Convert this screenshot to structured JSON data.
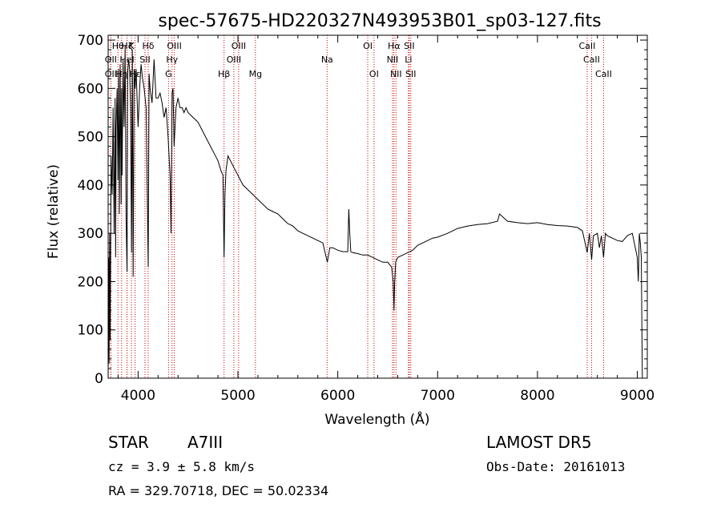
{
  "chart_data": {
    "type": "line",
    "title": "spec-57675-HD220327N493953B01_sp03-127.fits",
    "xlabel": "Wavelength (Å)",
    "ylabel": "Flux (relative)",
    "xlim": [
      3700,
      9100
    ],
    "ylim": [
      0,
      710
    ],
    "x_ticks": [
      4000,
      5000,
      6000,
      7000,
      8000,
      9000
    ],
    "y_ticks": [
      0,
      100,
      200,
      300,
      400,
      500,
      600,
      700
    ],
    "grid": false,
    "line_color": "#000000",
    "marker_line_color": "#cc0000",
    "series": [
      {
        "x": [
          3700,
          3705,
          3710,
          3715,
          3720,
          3730,
          3740,
          3750,
          3760,
          3770,
          3775,
          3780,
          3790,
          3798,
          3805,
          3812,
          3820,
          3830,
          3835,
          3840,
          3850,
          3860,
          3870,
          3880,
          3889,
          3895,
          3905,
          3915,
          3925,
          3934,
          3942,
          3950,
          3960,
          3970,
          3980,
          3990,
          4000,
          4015,
          4030,
          4045,
          4060,
          4080,
          4101,
          4110,
          4120,
          4140,
          4160,
          4180,
          4200,
          4220,
          4240,
          4260,
          4280,
          4300,
          4320,
          4330,
          4340,
          4350,
          4360,
          4380,
          4400,
          4420,
          4440,
          4460,
          4480,
          4500,
          4550,
          4600,
          4650,
          4700,
          4750,
          4800,
          4830,
          4850,
          4861,
          4870,
          4880,
          4900,
          4950,
          5000,
          5050,
          5100,
          5150,
          5200,
          5250,
          5300,
          5350,
          5400,
          5450,
          5500,
          5550,
          5600,
          5650,
          5700,
          5750,
          5800,
          5850,
          5895,
          5920,
          5950,
          6000,
          6050,
          6100,
          6110,
          6120,
          6130,
          6150,
          6200,
          6250,
          6300,
          6350,
          6400,
          6450,
          6500,
          6540,
          6555,
          6563,
          6570,
          6580,
          6600,
          6650,
          6700,
          6750,
          6800,
          6850,
          6900,
          6950,
          7000,
          7100,
          7200,
          7300,
          7400,
          7500,
          7600,
          7620,
          7700,
          7800,
          7900,
          8000,
          8100,
          8200,
          8300,
          8400,
          8450,
          8498,
          8520,
          8542,
          8560,
          8600,
          8620,
          8640,
          8662,
          8680,
          8700,
          8750,
          8800,
          8850,
          8900,
          8950,
          9000,
          9010,
          9020,
          9030,
          9040,
          9050
        ],
        "y": [
          0,
          250,
          30,
          300,
          80,
          460,
          380,
          560,
          300,
          580,
          250,
          520,
          600,
          410,
          640,
          340,
          650,
          360,
          600,
          420,
          660,
          520,
          690,
          330,
          220,
          630,
          660,
          640,
          560,
          260,
          680,
          210,
          640,
          600,
          640,
          580,
          520,
          600,
          650,
          620,
          600,
          560,
          230,
          630,
          600,
          570,
          660,
          580,
          580,
          590,
          570,
          540,
          560,
          500,
          420,
          300,
          590,
          600,
          480,
          560,
          580,
          560,
          560,
          550,
          560,
          550,
          540,
          530,
          510,
          490,
          470,
          450,
          430,
          420,
          250,
          380,
          430,
          460,
          440,
          420,
          400,
          390,
          380,
          370,
          360,
          350,
          345,
          340,
          330,
          320,
          315,
          305,
          300,
          295,
          290,
          285,
          280,
          240,
          270,
          270,
          265,
          262,
          262,
          350,
          300,
          262,
          260,
          258,
          255,
          255,
          250,
          245,
          240,
          240,
          230,
          200,
          140,
          200,
          240,
          250,
          255,
          260,
          265,
          275,
          280,
          285,
          290,
          292,
          300,
          310,
          315,
          318,
          320,
          325,
          340,
          325,
          322,
          320,
          322,
          318,
          316,
          315,
          312,
          305,
          260,
          300,
          245,
          295,
          300,
          270,
          295,
          250,
          300,
          295,
          290,
          285,
          283,
          295,
          300,
          250,
          200,
          300,
          280,
          250,
          0
        ]
      }
    ],
    "line_markers": [
      {
        "name": "OII",
        "wavelength": 3727,
        "row": 2
      },
      {
        "name": "OII",
        "wavelength": 3727,
        "row": 3
      },
      {
        "name": "Hθ",
        "wavelength": 3798,
        "row": 1
      },
      {
        "name": "Hη",
        "wavelength": 3835,
        "row": 3
      },
      {
        "name": "HeI",
        "wavelength": 3889,
        "row": 2
      },
      {
        "name": "Hζ",
        "wavelength": 3889,
        "row": 1
      },
      {
        "name": "K",
        "wavelength": 3934,
        "row": 1
      },
      {
        "name": "Hε",
        "wavelength": 3970,
        "row": 3
      },
      {
        "name": "SII",
        "wavelength": 4069,
        "row": 2
      },
      {
        "name": "Hδ",
        "wavelength": 4101,
        "row": 1
      },
      {
        "name": "OIII",
        "wavelength": 4363,
        "row": 1
      },
      {
        "name": "Hγ",
        "wavelength": 4340,
        "row": 2
      },
      {
        "name": "G",
        "wavelength": 4305,
        "row": 3
      },
      {
        "name": "Hβ",
        "wavelength": 4861,
        "row": 3
      },
      {
        "name": "OIII",
        "wavelength": 4959,
        "row": 2
      },
      {
        "name": "OIII",
        "wavelength": 5007,
        "row": 1
      },
      {
        "name": "Mg",
        "wavelength": 5175,
        "row": 3
      },
      {
        "name": "Na",
        "wavelength": 5893,
        "row": 2
      },
      {
        "name": "OI",
        "wavelength": 6300,
        "row": 1
      },
      {
        "name": "OI",
        "wavelength": 6363,
        "row": 3
      },
      {
        "name": "Hα",
        "wavelength": 6563,
        "row": 1
      },
      {
        "name": "NII",
        "wavelength": 6548,
        "row": 2
      },
      {
        "name": "NII",
        "wavelength": 6583,
        "row": 3
      },
      {
        "name": "SII",
        "wavelength": 6716,
        "row": 1
      },
      {
        "name": "SII",
        "wavelength": 6731,
        "row": 3
      },
      {
        "name": "Li",
        "wavelength": 6708,
        "row": 2
      },
      {
        "name": "CaII",
        "wavelength": 8498,
        "row": 1
      },
      {
        "name": "CaII",
        "wavelength": 8542,
        "row": 2
      },
      {
        "name": "CaII",
        "wavelength": 8662,
        "row": 3
      }
    ]
  },
  "footer": {
    "object_class": "STAR",
    "subclass": "A7III",
    "cz": "cz =  3.9 ± 5.8 km/s",
    "coords": "RA = 329.70718, DEC =  50.02334",
    "survey": "LAMOST DR5",
    "obs_date": "Obs-Date: 20161013"
  }
}
